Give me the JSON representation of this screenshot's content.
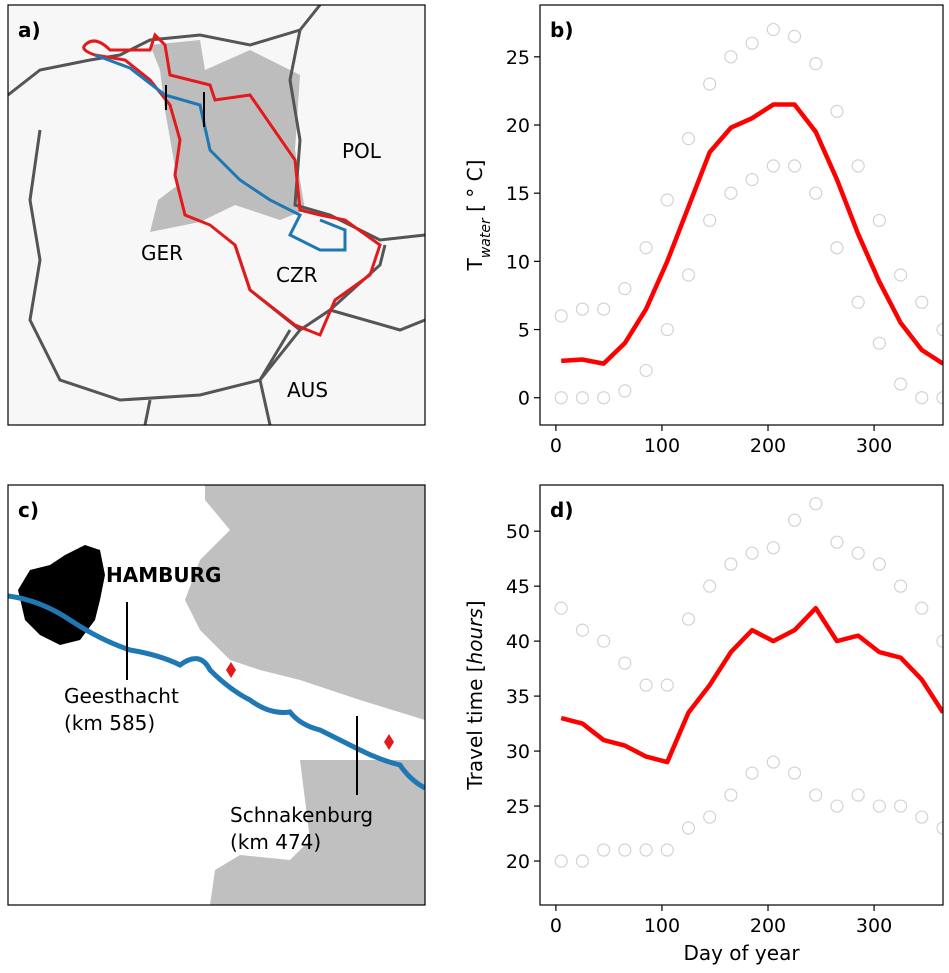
{
  "maps": [
    {
      "panel_label": "a)",
      "countries": [
        "POL",
        "GER",
        "CZR",
        "AUS"
      ]
    },
    {
      "panel_label": "c)",
      "city": "HAMBURG",
      "gauges": [
        {
          "name": "Geesthacht",
          "km": "(km 585)"
        },
        {
          "name": "Schnakenburg",
          "km": "(km 474)"
        }
      ]
    }
  ],
  "chart_data": [
    {
      "type": "scatter",
      "panel_label": "b)",
      "ylabel_parts": [
        "T",
        "water",
        " [ ° C]"
      ],
      "xlim": [
        -15,
        365
      ],
      "xticks": [
        0,
        100,
        200,
        300
      ],
      "ylim": [
        -2,
        28.8
      ],
      "yticks": [
        0,
        5,
        10,
        15,
        20,
        25
      ],
      "x": [
        5,
        25,
        45,
        65,
        85,
        105,
        125,
        145,
        165,
        185,
        205,
        225,
        245,
        265,
        285,
        305,
        325,
        345,
        365
      ],
      "series": [
        {
          "kind": "scatter",
          "color": "#808080",
          "x": [
            5,
            25,
            45,
            65,
            85,
            105,
            125,
            145,
            165,
            185,
            205,
            225,
            245,
            265,
            285,
            305,
            325,
            345,
            365,
            5,
            25,
            45,
            65,
            85,
            105,
            125,
            145,
            165,
            185,
            205,
            225,
            245,
            265,
            285,
            305,
            325,
            345,
            365
          ],
          "values": [
            6,
            6.5,
            6.5,
            8,
            11,
            14.5,
            19,
            23,
            25,
            26,
            27,
            26.5,
            24.5,
            21,
            17,
            13,
            9,
            7,
            5,
            0,
            0,
            0,
            0.5,
            2,
            5,
            9,
            13,
            15,
            16,
            17,
            17,
            15,
            11,
            7,
            4,
            1,
            0,
            0
          ]
        },
        {
          "kind": "line",
          "color": "#ff0000",
          "values": [
            2.7,
            2.8,
            2.5,
            4,
            6.5,
            10,
            14,
            18,
            19.8,
            20.5,
            21.5,
            21.5,
            19.5,
            16,
            12,
            8.5,
            5.5,
            3.5,
            2.5
          ]
        }
      ]
    },
    {
      "type": "scatter",
      "panel_label": "d)",
      "ylabel_parts": [
        "Travel time [",
        "hours",
        "]"
      ],
      "xlabel": "Day of year",
      "xlim": [
        -15,
        365
      ],
      "xticks": [
        0,
        100,
        200,
        300
      ],
      "ylim": [
        16,
        54.2
      ],
      "yticks": [
        20,
        25,
        30,
        35,
        40,
        45,
        50
      ],
      "x": [
        5,
        25,
        45,
        65,
        85,
        105,
        125,
        145,
        165,
        185,
        205,
        225,
        245,
        265,
        285,
        305,
        325,
        345,
        365
      ],
      "series": [
        {
          "kind": "scatter",
          "color": "#808080",
          "x": [
            5,
            25,
            45,
            65,
            85,
            105,
            125,
            145,
            165,
            185,
            205,
            225,
            245,
            265,
            285,
            305,
            325,
            345,
            365,
            5,
            25,
            45,
            65,
            85,
            105,
            125,
            145,
            165,
            185,
            205,
            225,
            245,
            265,
            285,
            305,
            325,
            345,
            365
          ],
          "values": [
            43,
            41,
            40,
            38,
            36,
            36,
            42,
            45,
            47,
            48,
            48.5,
            51,
            52.5,
            49,
            48,
            47,
            45,
            43,
            40,
            20,
            20,
            21,
            21,
            21,
            21,
            23,
            24,
            26,
            28,
            29,
            28,
            26,
            25,
            26,
            25,
            25,
            24,
            23
          ]
        },
        {
          "kind": "line",
          "color": "#ff0000",
          "values": [
            33,
            32.5,
            31,
            30.5,
            29.5,
            29,
            33.5,
            36,
            39,
            41,
            40,
            41,
            43,
            40,
            40.5,
            39,
            38.5,
            36.5,
            33.5
          ]
        }
      ]
    }
  ]
}
